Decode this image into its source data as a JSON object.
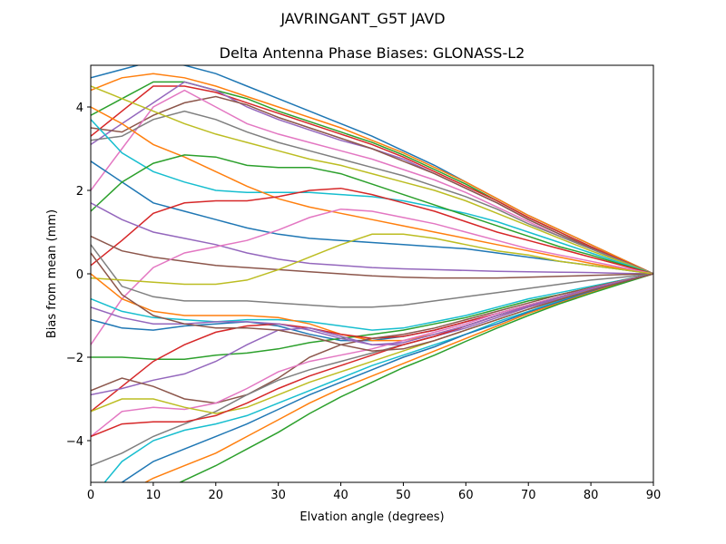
{
  "chart_data": {
    "type": "line",
    "suptitle": "JAVRINGANT_G5T  JAVD",
    "title": "Delta Antenna Phase Biases: GLONASS-L2",
    "xlabel": "Elvation angle (degrees)",
    "ylabel": "Bias from mean (mm)",
    "xlim": [
      0,
      90
    ],
    "ylim": [
      -5,
      5
    ],
    "x_ticks": [
      "0",
      "10",
      "20",
      "30",
      "40",
      "50",
      "60",
      "70",
      "80",
      "90"
    ],
    "y_ticks": [
      "−4",
      "−2",
      "0",
      "2",
      "4"
    ],
    "x": [
      0,
      5,
      10,
      15,
      20,
      25,
      30,
      35,
      40,
      45,
      50,
      55,
      60,
      65,
      70,
      75,
      80,
      85,
      90
    ],
    "colors": [
      "#1f77b4",
      "#ff7f0e",
      "#2ca02c",
      "#d62728",
      "#9467bd",
      "#8c564b",
      "#e377c2",
      "#7f7f7f",
      "#bcbd22",
      "#17becf"
    ],
    "grid": false,
    "legend": "none",
    "series": [
      {
        "values": [
          4.7,
          4.9,
          5.1,
          5.0,
          4.8,
          4.5,
          4.2,
          3.9,
          3.6,
          3.3,
          2.95,
          2.6,
          2.2,
          1.8,
          1.4,
          1.05,
          0.7,
          0.35,
          0
        ]
      },
      {
        "values": [
          4.4,
          4.7,
          4.8,
          4.7,
          4.5,
          4.25,
          4.0,
          3.75,
          3.5,
          3.2,
          2.9,
          2.55,
          2.2,
          1.8,
          1.4,
          1.05,
          0.7,
          0.35,
          0
        ]
      },
      {
        "values": [
          3.8,
          4.2,
          4.6,
          4.6,
          4.4,
          4.2,
          3.9,
          3.65,
          3.4,
          3.15,
          2.85,
          2.5,
          2.15,
          1.75,
          1.35,
          1.0,
          0.65,
          0.32,
          0
        ]
      },
      {
        "values": [
          3.3,
          3.9,
          4.5,
          4.5,
          4.35,
          4.1,
          3.85,
          3.6,
          3.35,
          3.1,
          2.8,
          2.45,
          2.1,
          1.75,
          1.35,
          1.0,
          0.65,
          0.32,
          0
        ]
      },
      {
        "values": [
          3.1,
          3.6,
          4.1,
          4.6,
          4.4,
          4.0,
          3.7,
          3.45,
          3.2,
          3.0,
          2.75,
          2.4,
          2.05,
          1.7,
          1.3,
          0.95,
          0.62,
          0.3,
          0
        ]
      },
      {
        "values": [
          3.5,
          3.4,
          3.8,
          4.1,
          4.25,
          4.05,
          3.75,
          3.5,
          3.25,
          3.0,
          2.7,
          2.4,
          2.05,
          1.7,
          1.3,
          0.95,
          0.62,
          0.3,
          0
        ]
      },
      {
        "values": [
          2.0,
          3.0,
          4.0,
          4.4,
          4.0,
          3.6,
          3.35,
          3.15,
          2.95,
          2.75,
          2.5,
          2.25,
          1.95,
          1.6,
          1.25,
          0.9,
          0.6,
          0.3,
          0
        ]
      },
      {
        "values": [
          3.2,
          3.3,
          3.7,
          3.9,
          3.7,
          3.4,
          3.15,
          2.95,
          2.75,
          2.55,
          2.35,
          2.1,
          1.85,
          1.55,
          1.2,
          0.9,
          0.6,
          0.3,
          0
        ]
      },
      {
        "values": [
          4.5,
          4.2,
          3.9,
          3.6,
          3.35,
          3.15,
          2.95,
          2.75,
          2.6,
          2.4,
          2.2,
          2.0,
          1.75,
          1.45,
          1.15,
          0.85,
          0.55,
          0.28,
          0
        ]
      },
      {
        "values": [
          3.7,
          2.9,
          2.45,
          2.2,
          2.0,
          1.95,
          1.95,
          1.95,
          1.9,
          1.85,
          1.75,
          1.6,
          1.45,
          1.25,
          1.0,
          0.75,
          0.5,
          0.25,
          0
        ]
      },
      {
        "values": [
          2.7,
          2.2,
          1.7,
          1.5,
          1.3,
          1.1,
          0.95,
          0.85,
          0.8,
          0.75,
          0.7,
          0.65,
          0.6,
          0.5,
          0.4,
          0.3,
          0.2,
          0.1,
          0
        ]
      },
      {
        "values": [
          4.0,
          3.6,
          3.1,
          2.8,
          2.45,
          2.1,
          1.8,
          1.6,
          1.45,
          1.3,
          1.15,
          1.0,
          0.85,
          0.7,
          0.55,
          0.4,
          0.25,
          0.12,
          0
        ]
      },
      {
        "values": [
          1.5,
          2.2,
          2.65,
          2.85,
          2.8,
          2.6,
          2.55,
          2.55,
          2.4,
          2.15,
          1.9,
          1.65,
          1.4,
          1.15,
          0.9,
          0.65,
          0.45,
          0.22,
          0
        ]
      },
      {
        "values": [
          0.2,
          0.8,
          1.45,
          1.7,
          1.75,
          1.75,
          1.85,
          2.0,
          2.05,
          1.9,
          1.7,
          1.5,
          1.25,
          1.0,
          0.8,
          0.6,
          0.4,
          0.2,
          0
        ]
      },
      {
        "values": [
          1.7,
          1.3,
          1.0,
          0.85,
          0.7,
          0.5,
          0.35,
          0.25,
          0.2,
          0.15,
          0.12,
          0.1,
          0.08,
          0.06,
          0.05,
          0.04,
          0.03,
          0.01,
          0
        ]
      },
      {
        "values": [
          0.9,
          0.55,
          0.4,
          0.3,
          0.2,
          0.15,
          0.1,
          0.05,
          0.0,
          -0.05,
          -0.08,
          -0.1,
          -0.1,
          -0.1,
          -0.08,
          -0.06,
          -0.04,
          -0.02,
          0
        ]
      },
      {
        "values": [
          -1.7,
          -0.6,
          0.15,
          0.5,
          0.65,
          0.8,
          1.05,
          1.35,
          1.55,
          1.5,
          1.35,
          1.2,
          1.0,
          0.8,
          0.6,
          0.45,
          0.3,
          0.15,
          0
        ]
      },
      {
        "values": [
          0.7,
          -0.3,
          -0.55,
          -0.65,
          -0.65,
          -0.65,
          -0.7,
          -0.75,
          -0.8,
          -0.8,
          -0.75,
          -0.65,
          -0.55,
          -0.45,
          -0.35,
          -0.25,
          -0.15,
          -0.08,
          0
        ]
      },
      {
        "values": [
          -0.1,
          -0.15,
          -0.2,
          -0.25,
          -0.25,
          -0.15,
          0.1,
          0.4,
          0.7,
          0.95,
          0.95,
          0.85,
          0.7,
          0.55,
          0.45,
          0.3,
          0.2,
          0.1,
          0
        ]
      },
      {
        "values": [
          -0.6,
          -0.9,
          -1.05,
          -1.1,
          -1.15,
          -1.1,
          -1.1,
          -1.15,
          -1.25,
          -1.35,
          -1.3,
          -1.15,
          -1.0,
          -0.8,
          -0.6,
          -0.45,
          -0.3,
          -0.15,
          0
        ]
      },
      {
        "values": [
          -1.1,
          -1.3,
          -1.35,
          -1.25,
          -1.2,
          -1.15,
          -1.25,
          -1.45,
          -1.6,
          -1.6,
          -1.5,
          -1.35,
          -1.15,
          -0.95,
          -0.75,
          -0.55,
          -0.35,
          -0.17,
          0
        ]
      },
      {
        "values": [
          0.0,
          -0.6,
          -0.9,
          -1.0,
          -1.0,
          -1.0,
          -1.05,
          -1.2,
          -1.45,
          -1.6,
          -1.6,
          -1.45,
          -1.25,
          -1.0,
          -0.8,
          -0.6,
          -0.4,
          -0.2,
          0
        ]
      },
      {
        "values": [
          -2.0,
          -2.0,
          -2.05,
          -2.05,
          -1.95,
          -1.9,
          -1.8,
          -1.65,
          -1.55,
          -1.45,
          -1.35,
          -1.2,
          -1.05,
          -0.85,
          -0.65,
          -0.5,
          -0.33,
          -0.16,
          0
        ]
      },
      {
        "values": [
          -3.3,
          -2.7,
          -2.1,
          -1.7,
          -1.4,
          -1.25,
          -1.2,
          -1.3,
          -1.45,
          -1.55,
          -1.5,
          -1.35,
          -1.15,
          -0.95,
          -0.75,
          -0.55,
          -0.35,
          -0.17,
          0
        ]
      },
      {
        "values": [
          -2.9,
          -2.75,
          -2.55,
          -2.4,
          -2.1,
          -1.7,
          -1.35,
          -1.3,
          -1.5,
          -1.7,
          -1.7,
          -1.5,
          -1.3,
          -1.05,
          -0.8,
          -0.6,
          -0.4,
          -0.2,
          0
        ]
      },
      {
        "values": [
          -2.8,
          -2.5,
          -2.7,
          -3.0,
          -3.1,
          -2.9,
          -2.5,
          -2.0,
          -1.7,
          -1.55,
          -1.45,
          -1.3,
          -1.1,
          -0.9,
          -0.7,
          -0.5,
          -0.33,
          -0.16,
          0
        ]
      },
      {
        "values": [
          -3.9,
          -3.3,
          -3.2,
          -3.25,
          -3.1,
          -2.75,
          -2.35,
          -2.1,
          -1.95,
          -1.8,
          -1.6,
          -1.4,
          -1.2,
          -0.95,
          -0.75,
          -0.55,
          -0.35,
          -0.17,
          0
        ]
      },
      {
        "values": [
          -4.6,
          -4.3,
          -3.9,
          -3.6,
          -3.3,
          -2.9,
          -2.55,
          -2.3,
          -2.1,
          -1.9,
          -1.7,
          -1.5,
          -1.25,
          -1.0,
          -0.78,
          -0.56,
          -0.36,
          -0.18,
          0
        ]
      },
      {
        "values": [
          -3.3,
          -3.0,
          -3.0,
          -3.2,
          -3.35,
          -3.2,
          -2.9,
          -2.6,
          -2.35,
          -2.1,
          -1.85,
          -1.6,
          -1.35,
          -1.1,
          -0.85,
          -0.62,
          -0.4,
          -0.2,
          0
        ]
      },
      {
        "values": [
          -5.4,
          -4.5,
          -4.0,
          -3.75,
          -3.6,
          -3.4,
          -3.1,
          -2.8,
          -2.5,
          -2.2,
          -1.95,
          -1.7,
          -1.45,
          -1.15,
          -0.9,
          -0.65,
          -0.42,
          -0.2,
          0
        ]
      },
      {
        "values": [
          -5.6,
          -5.0,
          -4.5,
          -4.2,
          -3.9,
          -3.6,
          -3.25,
          -2.9,
          -2.6,
          -2.3,
          -2.0,
          -1.75,
          -1.45,
          -1.2,
          -0.92,
          -0.67,
          -0.43,
          -0.21,
          0
        ]
      },
      {
        "values": [
          -6.0,
          -5.3,
          -4.9,
          -4.6,
          -4.3,
          -3.9,
          -3.5,
          -3.1,
          -2.75,
          -2.45,
          -2.15,
          -1.85,
          -1.55,
          -1.25,
          -0.95,
          -0.7,
          -0.45,
          -0.22,
          0
        ]
      },
      {
        "values": [
          -6.4,
          -5.8,
          -5.3,
          -4.95,
          -4.6,
          -4.2,
          -3.8,
          -3.35,
          -2.95,
          -2.6,
          -2.25,
          -1.95,
          -1.62,
          -1.3,
          -1.0,
          -0.72,
          -0.47,
          -0.23,
          0
        ]
      },
      {
        "values": [
          -3.9,
          -3.6,
          -3.55,
          -3.55,
          -3.4,
          -3.1,
          -2.75,
          -2.45,
          -2.2,
          -1.95,
          -1.7,
          -1.5,
          -1.25,
          -1.0,
          -0.78,
          -0.56,
          -0.36,
          -0.18,
          0
        ]
      },
      {
        "values": [
          -0.8,
          -1.05,
          -1.2,
          -1.2,
          -1.15,
          -1.15,
          -1.2,
          -1.35,
          -1.55,
          -1.7,
          -1.65,
          -1.45,
          -1.25,
          -1.0,
          -0.78,
          -0.56,
          -0.36,
          -0.18,
          0
        ]
      },
      {
        "values": [
          0.5,
          -0.5,
          -1.0,
          -1.2,
          -1.3,
          -1.3,
          -1.35,
          -1.5,
          -1.7,
          -1.85,
          -1.8,
          -1.6,
          -1.35,
          -1.1,
          -0.85,
          -0.62,
          -0.4,
          -0.2,
          0
        ]
      }
    ]
  }
}
